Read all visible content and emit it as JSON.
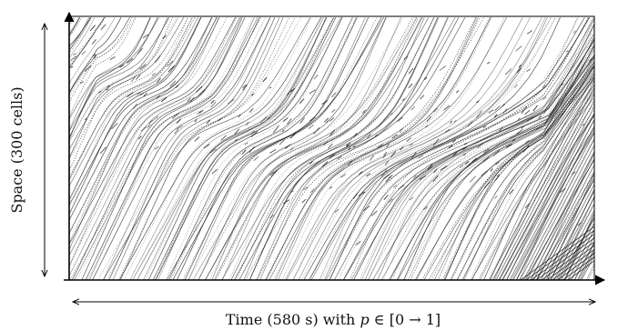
{
  "figure": {
    "y_label": "Space (300 cells)",
    "x_label_prefix": "Time (580 s) with ",
    "x_label_var": "p",
    "x_label_suffix": " ∈ [0 → 1]",
    "space_cells": 300,
    "duration_s": 580,
    "p_range": [
      0,
      1
    ]
  },
  "colors": {
    "background": "#ffffff",
    "trajectory": "#111111",
    "axis": "#000000"
  }
}
